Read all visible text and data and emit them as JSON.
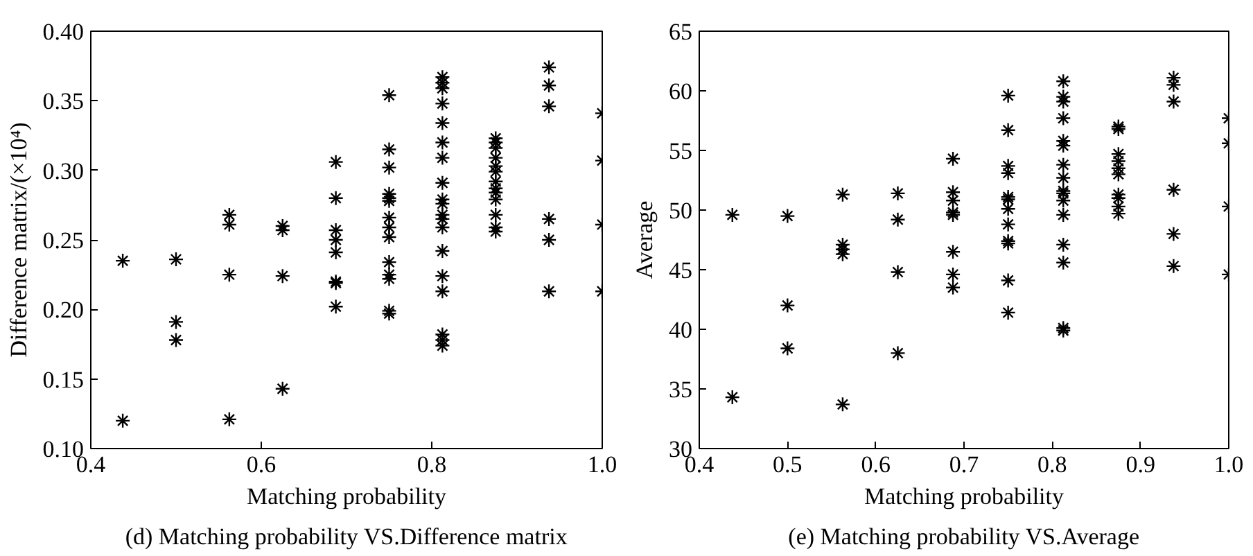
{
  "chart_data": [
    {
      "type": "scatter",
      "title": "(d) Matching probability VS.Difference matrix",
      "xlabel": "Matching probability",
      "ylabel": "Difference matrix/(×10⁴)",
      "xlim": [
        0.4,
        1.0
      ],
      "ylim": [
        0.1,
        0.4
      ],
      "xticks": [
        {
          "value": 0.4,
          "label": "0.4"
        },
        {
          "value": 0.6,
          "label": "0.6"
        },
        {
          "value": 0.8,
          "label": "0.8"
        },
        {
          "value": 1.0,
          "label": "1.0"
        }
      ],
      "yticks": [
        {
          "value": 0.1,
          "label": "0.10"
        },
        {
          "value": 0.15,
          "label": "0.15"
        },
        {
          "value": 0.2,
          "label": "0.20"
        },
        {
          "value": 0.25,
          "label": "0.25"
        },
        {
          "value": 0.3,
          "label": "0.30"
        },
        {
          "value": 0.35,
          "label": "0.35"
        },
        {
          "value": 0.4,
          "label": "0.40"
        }
      ],
      "marker": "cross",
      "grid": false,
      "series": [
        {
          "color": "#000000",
          "x": [
            0.4375,
            0.4375,
            0.5,
            0.5,
            0.5,
            0.5625,
            0.5625,
            0.5625,
            0.5625,
            0.625,
            0.625,
            0.625,
            0.625,
            0.6875,
            0.6875,
            0.6875,
            0.6875,
            0.6875,
            0.6875,
            0.6875,
            0.6875,
            0.75,
            0.75,
            0.75,
            0.75,
            0.75,
            0.75,
            0.75,
            0.75,
            0.75,
            0.75,
            0.75,
            0.75,
            0.75,
            0.75,
            0.8125,
            0.8125,
            0.8125,
            0.8125,
            0.8125,
            0.8125,
            0.8125,
            0.8125,
            0.8125,
            0.8125,
            0.8125,
            0.8125,
            0.8125,
            0.8125,
            0.8125,
            0.8125,
            0.8125,
            0.8125,
            0.8125,
            0.875,
            0.875,
            0.875,
            0.875,
            0.875,
            0.875,
            0.875,
            0.875,
            0.875,
            0.875,
            0.875,
            0.875,
            0.875,
            0.9375,
            0.9375,
            0.9375,
            0.9375,
            0.9375,
            0.9375,
            1.0,
            1.0,
            1.0,
            1.0
          ],
          "values": [
            0.235,
            0.12,
            0.236,
            0.191,
            0.178,
            0.268,
            0.261,
            0.225,
            0.121,
            0.26,
            0.257,
            0.224,
            0.143,
            0.306,
            0.28,
            0.257,
            0.25,
            0.241,
            0.22,
            0.219,
            0.202,
            0.354,
            0.315,
            0.302,
            0.283,
            0.28,
            0.278,
            0.266,
            0.259,
            0.252,
            0.234,
            0.225,
            0.222,
            0.199,
            0.197,
            0.367,
            0.363,
            0.359,
            0.348,
            0.334,
            0.32,
            0.309,
            0.291,
            0.279,
            0.276,
            0.268,
            0.265,
            0.259,
            0.242,
            0.224,
            0.213,
            0.182,
            0.178,
            0.174,
            0.323,
            0.32,
            0.316,
            0.309,
            0.303,
            0.299,
            0.292,
            0.287,
            0.284,
            0.279,
            0.268,
            0.259,
            0.256,
            0.374,
            0.361,
            0.346,
            0.265,
            0.25,
            0.213,
            0.341,
            0.307,
            0.261,
            0.213
          ]
        }
      ]
    },
    {
      "type": "scatter",
      "title": "(e) Matching probability VS.Average",
      "xlabel": "Matching probability",
      "ylabel": "Average",
      "xlim": [
        0.4,
        1.0
      ],
      "ylim": [
        30,
        65
      ],
      "xticks": [
        {
          "value": 0.4,
          "label": "0.4"
        },
        {
          "value": 0.5,
          "label": "0.5"
        },
        {
          "value": 0.6,
          "label": "0.6"
        },
        {
          "value": 0.7,
          "label": "0.7"
        },
        {
          "value": 0.8,
          "label": "0.8"
        },
        {
          "value": 0.9,
          "label": "0.9"
        },
        {
          "value": 1.0,
          "label": "1.0"
        }
      ],
      "yticks": [
        30,
        35,
        40,
        45,
        50,
        55,
        60,
        65
      ],
      "marker": "cross",
      "grid": false,
      "series": [
        {
          "color": "#000000",
          "x": [
            0.4375,
            0.4375,
            0.5,
            0.5,
            0.5,
            0.5625,
            0.5625,
            0.5625,
            0.5625,
            0.5625,
            0.625,
            0.625,
            0.625,
            0.625,
            0.6875,
            0.6875,
            0.6875,
            0.6875,
            0.6875,
            0.6875,
            0.6875,
            0.6875,
            0.75,
            0.75,
            0.75,
            0.75,
            0.75,
            0.75,
            0.75,
            0.75,
            0.75,
            0.75,
            0.75,
            0.75,
            0.8125,
            0.8125,
            0.8125,
            0.8125,
            0.8125,
            0.8125,
            0.8125,
            0.8125,
            0.8125,
            0.8125,
            0.8125,
            0.8125,
            0.8125,
            0.8125,
            0.8125,
            0.8125,
            0.875,
            0.875,
            0.875,
            0.875,
            0.875,
            0.875,
            0.875,
            0.875,
            0.875,
            0.875,
            0.9375,
            0.9375,
            0.9375,
            0.9375,
            0.9375,
            0.9375,
            1.0,
            1.0,
            1.0,
            1.0
          ],
          "values": [
            49.6,
            34.3,
            49.5,
            42.0,
            38.4,
            51.3,
            47.1,
            46.7,
            46.3,
            33.7,
            51.4,
            49.2,
            44.8,
            38.0,
            54.3,
            51.5,
            50.8,
            49.8,
            49.6,
            46.5,
            44.6,
            43.5,
            59.6,
            56.7,
            53.7,
            53.1,
            51.1,
            50.9,
            50.1,
            48.8,
            47.4,
            47.2,
            44.1,
            41.4,
            60.8,
            59.5,
            59.1,
            57.7,
            55.8,
            55.4,
            53.8,
            52.7,
            51.6,
            51.4,
            50.8,
            49.6,
            47.1,
            45.6,
            40.1,
            39.9,
            57.0,
            56.8,
            54.7,
            54.1,
            53.5,
            53.0,
            51.3,
            51.0,
            50.3,
            49.7,
            61.1,
            60.5,
            59.1,
            51.7,
            48.0,
            45.3,
            57.7,
            55.6,
            50.3,
            44.6
          ]
        }
      ]
    }
  ]
}
